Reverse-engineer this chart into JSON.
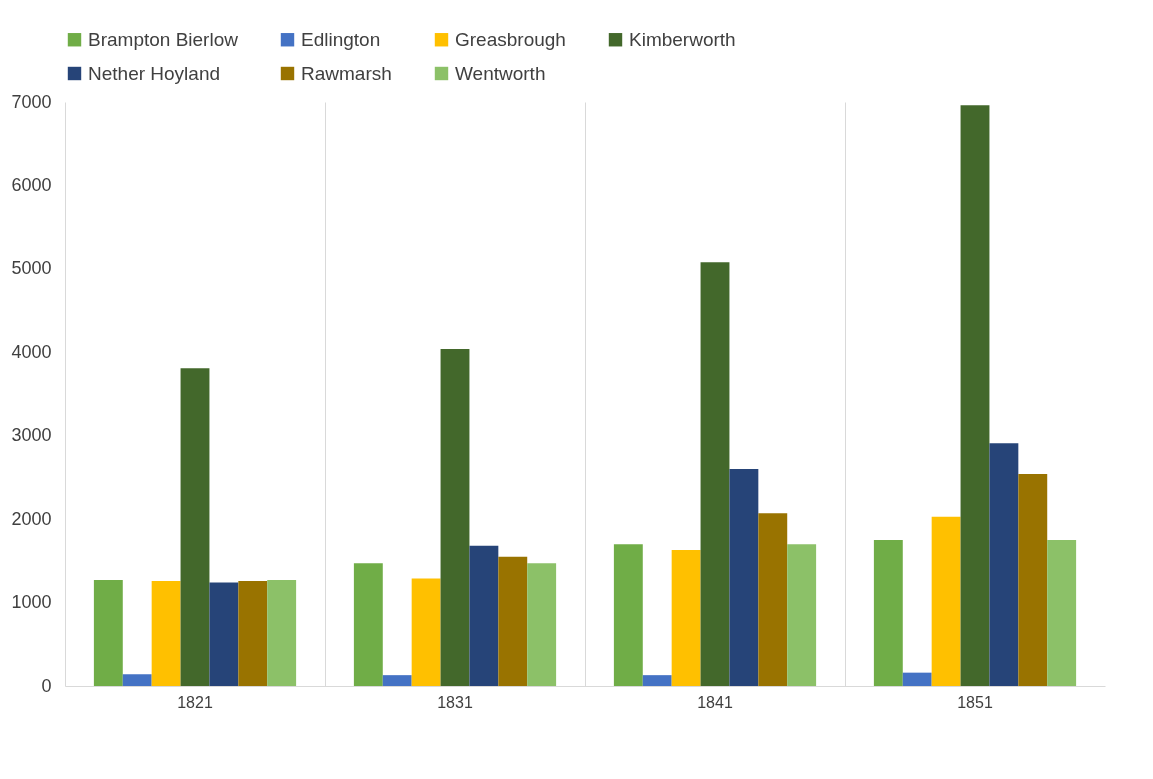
{
  "chart_data": {
    "type": "bar",
    "categories": [
      "1821",
      "1831",
      "1841",
      "1851"
    ],
    "series": [
      {
        "name": "Brampton Bierlow",
        "color": "#70ad47",
        "values": [
          1270,
          1470,
          1700,
          1750
        ]
      },
      {
        "name": "Edlington",
        "color": "#4472c4",
        "values": [
          140,
          130,
          130,
          160
        ]
      },
      {
        "name": "Greasbrough",
        "color": "#ffc000",
        "values": [
          1260,
          1290,
          1630,
          2030
        ]
      },
      {
        "name": "Kimberworth",
        "color": "#43682b",
        "values": [
          3810,
          4040,
          5080,
          6960
        ]
      },
      {
        "name": "Nether Hoyland",
        "color": "#264478",
        "values": [
          1240,
          1680,
          2600,
          2910
        ]
      },
      {
        "name": "Rawmarsh",
        "color": "#997300",
        "values": [
          1260,
          1550,
          2070,
          2540
        ]
      },
      {
        "name": "Wentworth",
        "color": "#8cc168",
        "values": [
          1270,
          1470,
          1700,
          1750
        ]
      }
    ],
    "ylim": [
      0,
      7000
    ],
    "yticks": [
      0,
      1000,
      2000,
      3000,
      4000,
      5000,
      6000,
      7000
    ],
    "grid": "x",
    "legend": "top"
  }
}
